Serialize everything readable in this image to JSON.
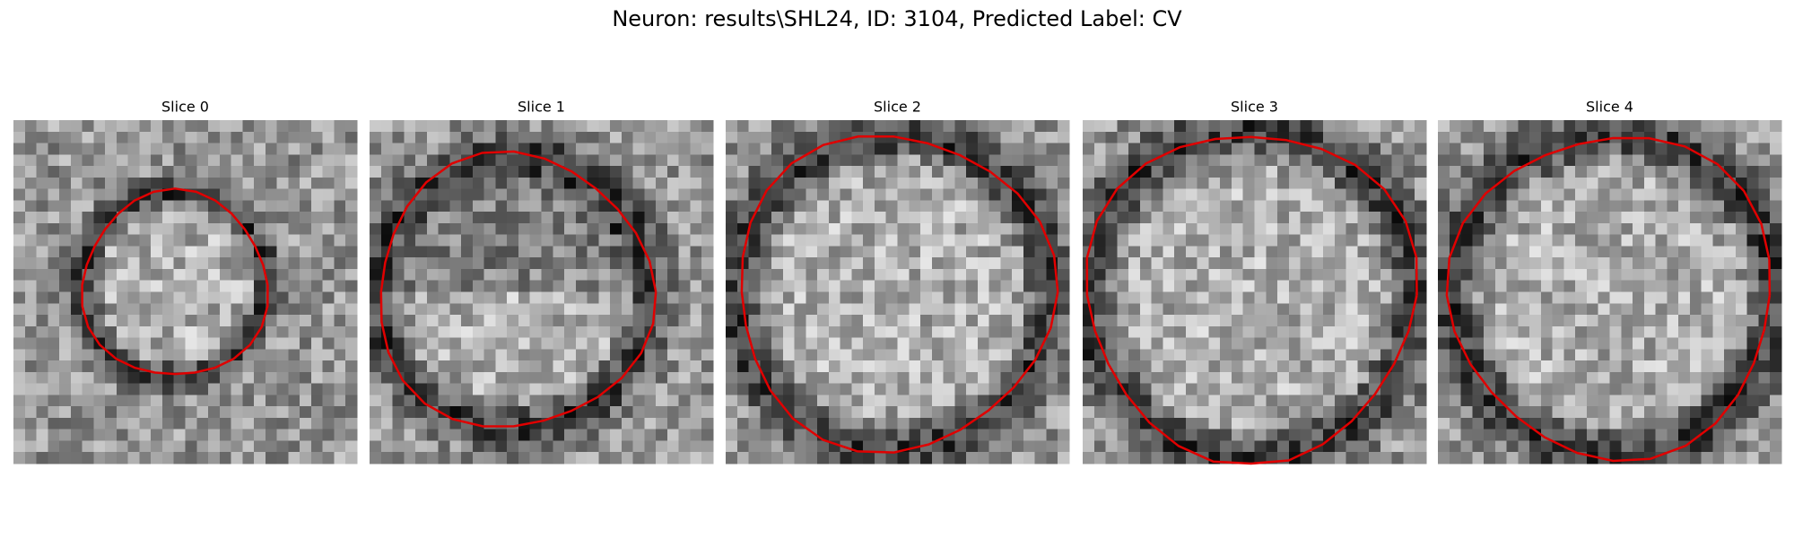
{
  "title": "Neuron: results\\SHL24, ID: 3104, Predicted Label: CV",
  "panels": [
    {
      "title": "Slice 0"
    },
    {
      "title": "Slice 1"
    },
    {
      "title": "Slice 2"
    },
    {
      "title": "Slice 3"
    },
    {
      "title": "Slice 4"
    }
  ]
}
